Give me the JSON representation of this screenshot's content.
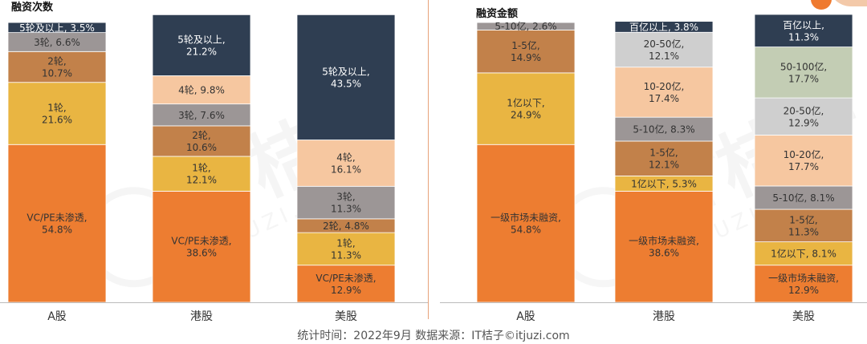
{
  "colors": {
    "c0": "#ed7d31",
    "c1": "#e9b542",
    "c2": "#c2814a",
    "c3": "#9c9696",
    "c4": "#f6c7a0",
    "c5": "#2f3e52",
    "c6": "#cfcfcf",
    "c7": "#c3cdb4",
    "watermark": "#eeeeee",
    "text_dark": "#333333",
    "text_light": "#ffffff"
  },
  "watermark": {
    "main": "IT桔子",
    "sub": "ITJUZI.COM"
  },
  "footer": "统计时间：2022年9月  数据来源：IT桔子©itjuzi.com",
  "chart_data": [
    {
      "type": "bar",
      "stacked": true,
      "title": "融资次数",
      "categories": [
        "A股",
        "港股",
        "美股"
      ],
      "ylim": [
        0,
        100
      ],
      "stacks": [
        [
          {
            "label": "VC/PE未渗透",
            "value": 54.8,
            "color": "c0"
          },
          {
            "label": "1轮",
            "value": 21.6,
            "color": "c1"
          },
          {
            "label": "2轮",
            "value": 10.7,
            "color": "c2"
          },
          {
            "label": "3轮",
            "value": 6.6,
            "color": "c3"
          },
          {
            "label": "5轮及以上",
            "value": 3.5,
            "color": "c5"
          }
        ],
        [
          {
            "label": "VC/PE未渗透",
            "value": 38.6,
            "color": "c0"
          },
          {
            "label": "1轮",
            "value": 12.1,
            "color": "c1"
          },
          {
            "label": "2轮",
            "value": 10.6,
            "color": "c2"
          },
          {
            "label": "3轮",
            "value": 7.6,
            "color": "c3"
          },
          {
            "label": "4轮",
            "value": 9.8,
            "color": "c4"
          },
          {
            "label": "5轮及以上",
            "value": 21.2,
            "color": "c5"
          }
        ],
        [
          {
            "label": "VC/PE未渗透",
            "value": 12.9,
            "color": "c0"
          },
          {
            "label": "1轮",
            "value": 11.3,
            "color": "c1"
          },
          {
            "label": "2轮",
            "value": 4.8,
            "color": "c2"
          },
          {
            "label": "3轮",
            "value": 11.3,
            "color": "c3"
          },
          {
            "label": "4轮",
            "value": 16.1,
            "color": "c4"
          },
          {
            "label": "5轮及以上",
            "value": 43.5,
            "color": "c5"
          }
        ]
      ]
    },
    {
      "type": "bar",
      "stacked": true,
      "title": "融资金额",
      "categories": [
        "A股",
        "港股",
        "美股"
      ],
      "ylim": [
        0,
        100
      ],
      "stacks": [
        [
          {
            "label": "一级市场未融资",
            "value": 54.8,
            "color": "c0"
          },
          {
            "label": "1亿以下",
            "value": 24.9,
            "color": "c1"
          },
          {
            "label": "1-5亿",
            "value": 14.9,
            "color": "c2"
          },
          {
            "label": "5-10亿",
            "value": 2.6,
            "color": "c3"
          }
        ],
        [
          {
            "label": "一级市场未融资",
            "value": 38.6,
            "color": "c0"
          },
          {
            "label": "1亿以下",
            "value": 5.3,
            "color": "c1"
          },
          {
            "label": "1-5亿",
            "value": 12.1,
            "color": "c2"
          },
          {
            "label": "5-10亿",
            "value": 8.3,
            "color": "c3"
          },
          {
            "label": "10-20亿",
            "value": 17.4,
            "color": "c4"
          },
          {
            "label": "20-50亿",
            "value": 12.1,
            "color": "c6"
          },
          {
            "label": "百亿以上",
            "value": 3.8,
            "color": "c5"
          }
        ],
        [
          {
            "label": "一级市场未融资",
            "value": 12.9,
            "color": "c0"
          },
          {
            "label": "1亿以下",
            "value": 8.1,
            "color": "c1"
          },
          {
            "label": "1-5亿",
            "value": 11.3,
            "color": "c2"
          },
          {
            "label": "5-10亿",
            "value": 8.1,
            "color": "c3"
          },
          {
            "label": "10-20亿",
            "value": 17.7,
            "color": "c4"
          },
          {
            "label": "20-50亿",
            "value": 12.9,
            "color": "c6"
          },
          {
            "label": "50-100亿",
            "value": 17.7,
            "color": "c7"
          },
          {
            "label": "百亿以上",
            "value": 11.3,
            "color": "c5"
          }
        ]
      ]
    }
  ]
}
